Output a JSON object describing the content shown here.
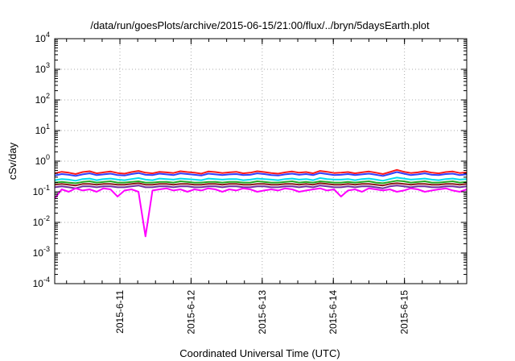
{
  "chart_data": {
    "type": "line",
    "title": "/data/run/goesPlots/archive/2015-06-15/21:00/flux/../bryn/5daysEarth.plot",
    "xlabel": "Coordinated Universal Time (UTC)",
    "ylabel": "cSv/day",
    "yscale": "log",
    "ylim": [
      0.0001,
      10000
    ],
    "xlim": [
      "2015-06-10T02:00",
      "2015-06-15T21:00"
    ],
    "grid": true,
    "legend": "none",
    "y_ticks": [
      {
        "base": "10",
        "exp": "-4"
      },
      {
        "base": "10",
        "exp": "-3"
      },
      {
        "base": "10",
        "exp": "-2"
      },
      {
        "base": "10",
        "exp": "-1"
      },
      {
        "base": "10",
        "exp": "0"
      },
      {
        "base": "10",
        "exp": "1"
      },
      {
        "base": "10",
        "exp": "2"
      },
      {
        "base": "10",
        "exp": "3"
      },
      {
        "base": "10",
        "exp": "4"
      }
    ],
    "x_ticks": [
      "2015-6-11",
      "2015-6-12",
      "2015-6-13",
      "2015-6-14",
      "2015-6-15"
    ],
    "series": [
      {
        "color": "#ff1a1a",
        "values": [
          0.4,
          0.45,
          0.42,
          0.38,
          0.44,
          0.47,
          0.4,
          0.43,
          0.46,
          0.41,
          0.39,
          0.44,
          0.48,
          0.42,
          0.4,
          0.45,
          0.43,
          0.41,
          0.47,
          0.44,
          0.42,
          0.39,
          0.46,
          0.44,
          0.41,
          0.43,
          0.45,
          0.4,
          0.42,
          0.47,
          0.44,
          0.41,
          0.39,
          0.43,
          0.46,
          0.42,
          0.44,
          0.4,
          0.48,
          0.45,
          0.41,
          0.42,
          0.44,
          0.4,
          0.43,
          0.46,
          0.42,
          0.38,
          0.44,
          0.52,
          0.45,
          0.41,
          0.43,
          0.47,
          0.42,
          0.4,
          0.44,
          0.46,
          0.41,
          0.43
        ]
      },
      {
        "color": "#3040ff",
        "values": [
          0.34,
          0.38,
          0.36,
          0.33,
          0.37,
          0.4,
          0.35,
          0.37,
          0.39,
          0.35,
          0.34,
          0.38,
          0.41,
          0.36,
          0.35,
          0.39,
          0.37,
          0.35,
          0.4,
          0.38,
          0.36,
          0.34,
          0.39,
          0.37,
          0.35,
          0.37,
          0.38,
          0.35,
          0.36,
          0.4,
          0.38,
          0.35,
          0.34,
          0.37,
          0.39,
          0.36,
          0.38,
          0.35,
          0.41,
          0.38,
          0.35,
          0.36,
          0.38,
          0.35,
          0.37,
          0.39,
          0.36,
          0.33,
          0.38,
          0.44,
          0.39,
          0.35,
          0.37,
          0.4,
          0.36,
          0.35,
          0.38,
          0.39,
          0.35,
          0.37
        ]
      },
      {
        "color": "#00ddee",
        "values": [
          0.24,
          0.26,
          0.25,
          0.23,
          0.26,
          0.27,
          0.24,
          0.26,
          0.27,
          0.25,
          0.24,
          0.26,
          0.28,
          0.25,
          0.24,
          0.27,
          0.26,
          0.25,
          0.27,
          0.26,
          0.25,
          0.24,
          0.27,
          0.26,
          0.25,
          0.26,
          0.26,
          0.24,
          0.25,
          0.27,
          0.26,
          0.25,
          0.24,
          0.26,
          0.27,
          0.25,
          0.26,
          0.24,
          0.28,
          0.26,
          0.25,
          0.25,
          0.26,
          0.24,
          0.26,
          0.27,
          0.25,
          0.23,
          0.26,
          0.29,
          0.27,
          0.25,
          0.26,
          0.27,
          0.25,
          0.24,
          0.26,
          0.27,
          0.25,
          0.26
        ]
      },
      {
        "color": "#22aa22",
        "values": [
          0.2,
          0.21,
          0.2,
          0.19,
          0.21,
          0.22,
          0.2,
          0.21,
          0.22,
          0.2,
          0.2,
          0.21,
          0.22,
          0.2,
          0.2,
          0.21,
          0.21,
          0.2,
          0.22,
          0.21,
          0.2,
          0.2,
          0.21,
          0.21,
          0.2,
          0.21,
          0.21,
          0.2,
          0.2,
          0.22,
          0.21,
          0.2,
          0.2,
          0.21,
          0.22,
          0.2,
          0.21,
          0.2,
          0.22,
          0.21,
          0.2,
          0.2,
          0.21,
          0.2,
          0.21,
          0.22,
          0.2,
          0.19,
          0.21,
          0.23,
          0.22,
          0.2,
          0.21,
          0.22,
          0.2,
          0.2,
          0.21,
          0.22,
          0.2,
          0.21
        ]
      },
      {
        "color": "#8b1a1a",
        "values": [
          0.17,
          0.18,
          0.17,
          0.16,
          0.18,
          0.18,
          0.17,
          0.18,
          0.18,
          0.17,
          0.17,
          0.18,
          0.19,
          0.17,
          0.17,
          0.18,
          0.18,
          0.17,
          0.18,
          0.18,
          0.17,
          0.17,
          0.18,
          0.18,
          0.17,
          0.18,
          0.18,
          0.17,
          0.17,
          0.18,
          0.18,
          0.17,
          0.17,
          0.18,
          0.18,
          0.17,
          0.18,
          0.17,
          0.19,
          0.18,
          0.17,
          0.17,
          0.18,
          0.17,
          0.18,
          0.18,
          0.17,
          0.16,
          0.18,
          0.19,
          0.18,
          0.17,
          0.18,
          0.18,
          0.17,
          0.17,
          0.18,
          0.18,
          0.17,
          0.18
        ]
      },
      {
        "color": "#7030a0",
        "values": [
          0.14,
          0.15,
          0.14,
          0.13,
          0.15,
          0.15,
          0.14,
          0.15,
          0.15,
          0.14,
          0.14,
          0.15,
          0.16,
          0.14,
          0.14,
          0.15,
          0.15,
          0.14,
          0.15,
          0.15,
          0.14,
          0.14,
          0.15,
          0.15,
          0.14,
          0.15,
          0.15,
          0.14,
          0.14,
          0.15,
          0.15,
          0.14,
          0.14,
          0.15,
          0.15,
          0.14,
          0.15,
          0.14,
          0.16,
          0.15,
          0.14,
          0.14,
          0.15,
          0.14,
          0.15,
          0.15,
          0.14,
          0.13,
          0.15,
          0.16,
          0.15,
          0.14,
          0.15,
          0.15,
          0.14,
          0.14,
          0.15,
          0.15,
          0.14,
          0.15
        ]
      },
      {
        "color": "#ff00ff",
        "values": [
          0.06,
          0.12,
          0.1,
          0.13,
          0.11,
          0.12,
          0.1,
          0.13,
          0.12,
          0.07,
          0.11,
          0.12,
          0.1,
          0.0035,
          0.11,
          0.12,
          0.13,
          0.11,
          0.12,
          0.1,
          0.12,
          0.11,
          0.13,
          0.12,
          0.1,
          0.12,
          0.11,
          0.13,
          0.12,
          0.1,
          0.11,
          0.12,
          0.11,
          0.13,
          0.12,
          0.1,
          0.11,
          0.12,
          0.13,
          0.11,
          0.12,
          0.07,
          0.11,
          0.12,
          0.1,
          0.13,
          0.12,
          0.11,
          0.12,
          0.1,
          0.11,
          0.13,
          0.12,
          0.1,
          0.11,
          0.12,
          0.13,
          0.11,
          0.1,
          0.12
        ]
      }
    ]
  }
}
